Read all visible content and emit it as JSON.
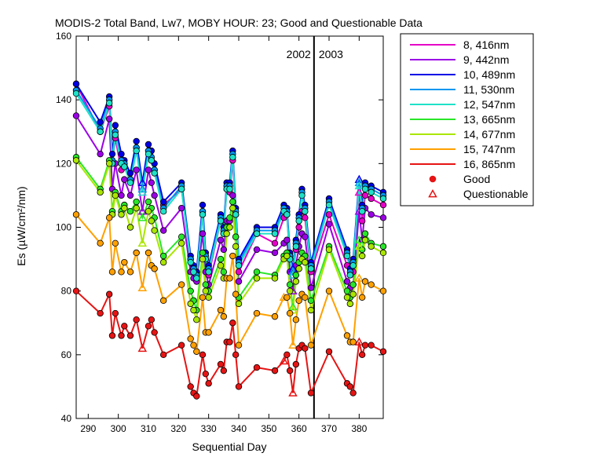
{
  "chart_data": {
    "type": "line",
    "title": "MODIS-2 Total Band,  Lw7, MOBY HOUR: 23;  Good and Questionable Data",
    "xlabel": "Sequential Day",
    "ylabel": "Es (µW/cm²/nm)",
    "xlim": [
      286,
      388
    ],
    "ylim": [
      40,
      160
    ],
    "xticks": [
      290,
      300,
      310,
      320,
      330,
      340,
      350,
      360,
      370,
      380
    ],
    "yticks": [
      40,
      60,
      80,
      100,
      120,
      140,
      160
    ],
    "grid": false,
    "legend_position": "right",
    "year_divider": {
      "x": 365,
      "labels": [
        "2002",
        "2003"
      ]
    },
    "x": [
      286,
      294,
      297,
      298,
      299,
      301,
      302,
      304,
      306,
      308,
      310,
      311,
      312,
      315,
      321,
      324,
      325,
      326,
      328,
      329,
      330,
      334,
      335,
      336,
      337,
      338,
      339,
      340,
      346,
      352,
      355,
      356,
      357,
      358,
      359,
      360,
      361,
      362,
      364,
      370,
      376,
      377,
      378,
      380,
      381,
      382,
      384,
      388
    ],
    "series": [
      {
        "name": "8, 416nm",
        "color": "#e600c8",
        "values": [
          145,
          130,
          138,
          120,
          128,
          118,
          120,
          115,
          125,
          112,
          124,
          121,
          118,
          107,
          112,
          90,
          87,
          86,
          105,
          90,
          85,
          102,
          98,
          112,
          111,
          121,
          104,
          86,
          98,
          95,
          103,
          104,
          90,
          85,
          93,
          100,
          105,
          103,
          86,
          104,
          88,
          85,
          86,
          111,
          102,
          110,
          109,
          107
        ]
      },
      {
        "name": "9, 442nm",
        "color": "#9b00e6",
        "values": [
          135,
          123,
          134,
          112,
          120,
          110,
          115,
          110,
          118,
          105,
          118,
          114,
          110,
          99,
          106,
          86,
          84,
          83,
          98,
          86,
          82,
          96,
          93,
          102,
          102,
          110,
          97,
          83,
          93,
          92,
          95,
          96,
          86,
          80,
          88,
          94,
          98,
          97,
          81,
          101,
          83,
          81,
          82,
          105,
          96,
          106,
          104,
          103
        ]
      },
      {
        "name": "10, 489nm",
        "color": "#0000e6",
        "values": [
          145,
          133,
          141,
          123,
          132,
          123,
          121,
          117,
          127,
          114,
          126,
          124,
          120,
          108,
          114,
          91,
          88,
          86,
          107,
          92,
          88,
          104,
          100,
          114,
          114,
          124,
          106,
          90,
          100,
          100,
          107,
          106,
          92,
          87,
          96,
          104,
          112,
          107,
          89,
          109,
          93,
          87,
          90,
          115,
          107,
          114,
          113,
          111
        ]
      },
      {
        "name": "11, 530nm",
        "color": "#0096f0",
        "values": [
          143,
          131,
          140,
          121,
          130,
          121,
          120,
          115,
          125,
          112,
          124,
          122,
          118,
          106,
          113,
          90,
          87,
          85,
          105,
          91,
          87,
          103,
          99,
          113,
          113,
          123,
          105,
          89,
          99,
          99,
          106,
          105,
          91,
          86,
          95,
          103,
          111,
          106,
          88,
          108,
          92,
          86,
          89,
          114,
          106,
          113,
          112,
          110
        ]
      },
      {
        "name": "12, 547nm",
        "color": "#1ee1c8",
        "values": [
          142,
          130,
          139,
          120,
          129,
          120,
          119,
          114,
          124,
          111,
          123,
          121,
          117,
          105,
          112,
          89,
          86,
          84,
          104,
          90,
          86,
          102,
          98,
          112,
          112,
          122,
          104,
          88,
          98,
          98,
          105,
          104,
          90,
          85,
          94,
          102,
          110,
          105,
          87,
          107,
          91,
          85,
          88,
          113,
          105,
          112,
          111,
          109
        ]
      },
      {
        "name": "13, 665nm",
        "color": "#28e628",
        "values": [
          122,
          112,
          121,
          105,
          111,
          105,
          107,
          105,
          108,
          103,
          108,
          106,
          103,
          91,
          97,
          80,
          77,
          74,
          92,
          82,
          80,
          90,
          86,
          100,
          103,
          108,
          97,
          78,
          86,
          85,
          91,
          92,
          82,
          75,
          85,
          89,
          92,
          91,
          77,
          94,
          80,
          78,
          82,
          96,
          93,
          98,
          95,
          94
        ]
      },
      {
        "name": "14, 677nm",
        "color": "#aae600",
        "values": [
          121,
          111,
          120,
          104,
          110,
          104,
          106,
          100,
          106,
          95,
          105,
          102,
          99,
          89,
          95,
          76,
          74,
          71,
          90,
          80,
          78,
          88,
          84,
          98,
          100,
          106,
          94,
          76,
          84,
          84,
          90,
          91,
          80,
          74,
          83,
          87,
          90,
          89,
          74,
          93,
          78,
          76,
          79,
          94,
          91,
          96,
          94,
          92
        ]
      },
      {
        "name": "15, 747nm",
        "color": "#ffa000",
        "values": [
          104,
          95,
          103,
          86,
          95,
          86,
          89,
          86,
          92,
          81,
          92,
          88,
          87,
          77,
          82,
          65,
          63,
          61,
          78,
          67,
          67,
          74,
          72,
          84,
          84,
          91,
          79,
          63,
          73,
          72,
          78,
          78,
          73,
          63,
          71,
          77,
          79,
          78,
          63,
          80,
          66,
          64,
          64,
          84,
          78,
          83,
          82,
          80
        ]
      },
      {
        "name": "16, 865nm",
        "color": "#e61414",
        "values": [
          80,
          73,
          79,
          66,
          73,
          66,
          69,
          66,
          71,
          62,
          69,
          71,
          67,
          60,
          63,
          50,
          48,
          47,
          60,
          54,
          51,
          57,
          55,
          64,
          64,
          70,
          60,
          50,
          56,
          55,
          58,
          60,
          55,
          48,
          57,
          62,
          63,
          62,
          48,
          61,
          51,
          50,
          48,
          64,
          60,
          63,
          63,
          61
        ]
      }
    ],
    "questionable_points": [
      {
        "series": "8, 416nm",
        "x": [
          308,
          358,
          380
        ]
      },
      {
        "series": "9, 442nm",
        "x": [
          308,
          358,
          380
        ]
      },
      {
        "series": "10, 489nm",
        "x": [
          308,
          358,
          380
        ]
      },
      {
        "series": "11, 530nm",
        "x": [
          308,
          358,
          380
        ]
      },
      {
        "series": "12, 547nm",
        "x": [
          308,
          358,
          380
        ]
      },
      {
        "series": "13, 665nm",
        "x": [
          308,
          358,
          380
        ]
      },
      {
        "series": "14, 677nm",
        "x": [
          308,
          358,
          380
        ]
      },
      {
        "series": "15, 747nm",
        "x": [
          308,
          355,
          358,
          380
        ]
      },
      {
        "series": "16, 865nm",
        "x": [
          308,
          355,
          358,
          380
        ]
      }
    ],
    "legend_markers": [
      {
        "label": "Good",
        "symbol": "filled-circle",
        "color": "#e61414"
      },
      {
        "label": "Questionable",
        "symbol": "open-triangle",
        "color": "#e61414"
      }
    ]
  }
}
